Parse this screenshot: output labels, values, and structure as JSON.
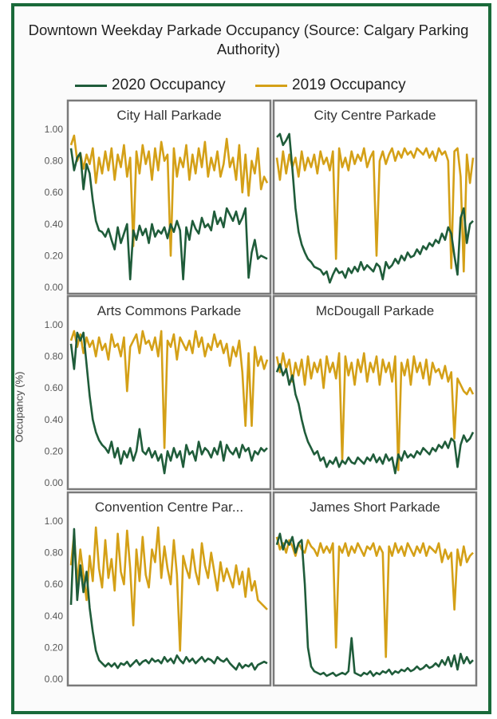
{
  "title": "Downtown Weekday Parkade Occupancy (Source: Calgary Parking Authority)",
  "colors": {
    "frame": "#1a6a3a",
    "series_2020": "#1f5c3a",
    "series_2019": "#d4a017",
    "panel_border": "#7a7a7a"
  },
  "chart_data": {
    "type": "line",
    "ylabel": "Occupancy (%)",
    "ylim": [
      0,
      1
    ],
    "yticks": [
      "0.00",
      "0.20",
      "0.40",
      "0.60",
      "0.80",
      "1.00"
    ],
    "series_names": [
      "2020 Occupancy",
      "2019 Occupancy"
    ],
    "legend": "top-center",
    "panels": [
      {
        "name": "City Hall Parkade",
        "series_2020": [
          0.88,
          0.74,
          0.82,
          0.85,
          0.62,
          0.78,
          0.72,
          0.55,
          0.42,
          0.36,
          0.35,
          0.32,
          0.37,
          0.3,
          0.24,
          0.38,
          0.28,
          0.34,
          0.4,
          0.05,
          0.36,
          0.3,
          0.39,
          0.33,
          0.37,
          0.28,
          0.4,
          0.32,
          0.36,
          0.34,
          0.38,
          0.31,
          0.4,
          0.35,
          0.42,
          0.36,
          0.05,
          0.38,
          0.3,
          0.42,
          0.37,
          0.34,
          0.44,
          0.38,
          0.4,
          0.36,
          0.48,
          0.4,
          0.44,
          0.38,
          0.5,
          0.46,
          0.42,
          0.48,
          0.4,
          0.44,
          0.5,
          0.06,
          0.22,
          0.3,
          0.18,
          0.2,
          0.19,
          0.18
        ],
        "series_2019": [
          0.9,
          0.96,
          0.8,
          0.85,
          0.75,
          0.84,
          0.78,
          0.88,
          0.66,
          0.82,
          0.72,
          0.86,
          0.74,
          0.88,
          0.68,
          0.84,
          0.76,
          0.9,
          0.7,
          0.82,
          0.26,
          0.86,
          0.72,
          0.9,
          0.78,
          0.86,
          0.68,
          0.88,
          0.74,
          0.92,
          0.8,
          0.84,
          0.2,
          0.88,
          0.7,
          0.82,
          0.76,
          0.9,
          0.68,
          0.84,
          0.72,
          0.88,
          0.76,
          0.92,
          0.7,
          0.82,
          0.74,
          0.86,
          0.7,
          0.78,
          0.94,
          0.76,
          0.82,
          0.68,
          0.9,
          0.6,
          0.84,
          0.58,
          0.8,
          0.72,
          0.88,
          0.62,
          0.7,
          0.66
        ]
      },
      {
        "name": "City Centre Parkade",
        "series_2020": [
          0.95,
          0.97,
          0.9,
          0.93,
          0.97,
          0.75,
          0.5,
          0.35,
          0.27,
          0.22,
          0.18,
          0.16,
          0.13,
          0.12,
          0.11,
          0.08,
          0.1,
          0.03,
          0.08,
          0.12,
          0.09,
          0.1,
          0.06,
          0.12,
          0.09,
          0.13,
          0.1,
          0.16,
          0.11,
          0.14,
          0.12,
          0.1,
          0.15,
          0.13,
          0.05,
          0.16,
          0.12,
          0.14,
          0.18,
          0.15,
          0.2,
          0.17,
          0.22,
          0.19,
          0.2,
          0.24,
          0.21,
          0.26,
          0.24,
          0.28,
          0.26,
          0.3,
          0.28,
          0.34,
          0.3,
          0.38,
          0.34,
          0.2,
          0.08,
          0.44,
          0.5,
          0.28,
          0.4,
          0.42
        ],
        "series_2019": [
          0.82,
          0.68,
          0.86,
          0.72,
          0.84,
          0.76,
          0.82,
          0.7,
          0.86,
          0.74,
          0.82,
          0.76,
          0.84,
          0.72,
          0.86,
          0.78,
          0.82,
          0.74,
          0.86,
          0.18,
          0.88,
          0.76,
          0.82,
          0.74,
          0.86,
          0.78,
          0.84,
          0.8,
          0.88,
          0.76,
          0.82,
          0.86,
          0.2,
          0.8,
          0.86,
          0.78,
          0.84,
          0.88,
          0.8,
          0.86,
          0.82,
          0.88,
          0.84,
          0.86,
          0.82,
          0.88,
          0.86,
          0.84,
          0.88,
          0.82,
          0.86,
          0.8,
          0.88,
          0.84,
          0.86,
          0.8,
          0.12,
          0.86,
          0.88,
          0.7,
          0.1,
          0.84,
          0.66,
          0.82
        ]
      },
      {
        "name": "Arts Commons Parkade",
        "series_2020": [
          0.88,
          0.72,
          0.95,
          0.9,
          0.95,
          0.75,
          0.55,
          0.4,
          0.32,
          0.27,
          0.24,
          0.22,
          0.19,
          0.26,
          0.16,
          0.22,
          0.12,
          0.2,
          0.16,
          0.22,
          0.14,
          0.2,
          0.34,
          0.2,
          0.18,
          0.22,
          0.16,
          0.2,
          0.14,
          0.18,
          0.06,
          0.2,
          0.14,
          0.22,
          0.16,
          0.2,
          0.1,
          0.24,
          0.18,
          0.2,
          0.14,
          0.26,
          0.18,
          0.22,
          0.2,
          0.16,
          0.22,
          0.18,
          0.26,
          0.14,
          0.24,
          0.2,
          0.18,
          0.22,
          0.16,
          0.24,
          0.2,
          0.22,
          0.14,
          0.2,
          0.18,
          0.22,
          0.2,
          0.22
        ],
        "series_2019": [
          0.9,
          0.96,
          0.86,
          0.94,
          0.82,
          0.92,
          0.86,
          0.9,
          0.8,
          0.92,
          0.84,
          0.88,
          0.78,
          0.94,
          0.86,
          0.88,
          0.8,
          0.92,
          0.58,
          0.86,
          0.9,
          0.94,
          0.82,
          0.96,
          0.88,
          0.9,
          0.84,
          0.92,
          0.8,
          0.96,
          0.22,
          0.9,
          0.86,
          0.94,
          0.78,
          0.92,
          0.88,
          0.84,
          0.9,
          0.82,
          0.96,
          0.86,
          0.92,
          0.8,
          0.88,
          0.84,
          0.94,
          0.86,
          0.9,
          0.82,
          0.88,
          0.74,
          0.86,
          0.8,
          0.9,
          0.7,
          0.36,
          0.82,
          0.36,
          0.86,
          0.74,
          0.8,
          0.72,
          0.78
        ]
      },
      {
        "name": "McDougall Parkade",
        "series_2020": [
          0.7,
          0.75,
          0.68,
          0.72,
          0.62,
          0.68,
          0.56,
          0.5,
          0.4,
          0.32,
          0.26,
          0.22,
          0.18,
          0.2,
          0.14,
          0.16,
          0.1,
          0.14,
          0.12,
          0.16,
          0.1,
          0.14,
          0.12,
          0.16,
          0.13,
          0.12,
          0.16,
          0.14,
          0.12,
          0.16,
          0.14,
          0.18,
          0.13,
          0.16,
          0.12,
          0.18,
          0.14,
          0.16,
          0.06,
          0.18,
          0.14,
          0.2,
          0.16,
          0.18,
          0.16,
          0.2,
          0.18,
          0.22,
          0.2,
          0.18,
          0.22,
          0.2,
          0.24,
          0.22,
          0.26,
          0.22,
          0.28,
          0.26,
          0.1,
          0.24,
          0.3,
          0.26,
          0.28,
          0.32
        ],
        "series_2019": [
          0.8,
          0.7,
          0.82,
          0.72,
          0.78,
          0.64,
          0.76,
          0.68,
          0.78,
          0.62,
          0.8,
          0.66,
          0.76,
          0.7,
          0.78,
          0.6,
          0.8,
          0.7,
          0.76,
          0.66,
          0.82,
          0.14,
          0.8,
          0.68,
          0.76,
          0.62,
          0.78,
          0.7,
          0.82,
          0.64,
          0.76,
          0.7,
          0.8,
          0.62,
          0.78,
          0.7,
          0.76,
          0.64,
          0.8,
          0.08,
          0.76,
          0.68,
          0.78,
          0.62,
          0.8,
          0.7,
          0.76,
          0.66,
          0.78,
          0.62,
          0.76,
          0.7,
          0.72,
          0.66,
          0.74,
          0.64,
          0.7,
          0.28,
          0.66,
          0.62,
          0.58,
          0.56,
          0.6,
          0.56
        ]
      },
      {
        "name": "Convention Centre Par...",
        "series_2020": [
          0.47,
          0.95,
          0.5,
          0.72,
          0.55,
          0.68,
          0.45,
          0.3,
          0.18,
          0.12,
          0.1,
          0.08,
          0.1,
          0.08,
          0.1,
          0.07,
          0.1,
          0.09,
          0.11,
          0.08,
          0.1,
          0.12,
          0.09,
          0.11,
          0.12,
          0.1,
          0.13,
          0.11,
          0.12,
          0.1,
          0.14,
          0.11,
          0.13,
          0.1,
          0.15,
          0.12,
          0.1,
          0.14,
          0.11,
          0.13,
          0.1,
          0.12,
          0.14,
          0.11,
          0.13,
          0.12,
          0.1,
          0.14,
          0.12,
          0.11,
          0.13,
          0.1,
          0.08,
          0.06,
          0.1,
          0.07,
          0.09,
          0.08,
          0.1,
          0.06,
          0.09,
          0.1,
          0.11,
          0.1
        ],
        "series_2019": [
          0.72,
          0.92,
          0.6,
          0.82,
          0.66,
          0.5,
          0.78,
          0.62,
          0.96,
          0.7,
          0.58,
          0.88,
          0.64,
          0.76,
          0.56,
          0.92,
          0.68,
          0.6,
          0.94,
          0.7,
          0.34,
          0.82,
          0.62,
          0.9,
          0.66,
          0.58,
          0.82,
          0.74,
          0.96,
          0.64,
          0.84,
          0.7,
          0.6,
          0.88,
          0.66,
          0.18,
          0.78,
          0.7,
          0.64,
          0.82,
          0.68,
          0.6,
          0.86,
          0.72,
          0.64,
          0.8,
          0.68,
          0.56,
          0.74,
          0.62,
          0.7,
          0.64,
          0.58,
          0.72,
          0.6,
          0.68,
          0.52,
          0.7,
          0.56,
          0.62,
          0.5,
          0.48,
          0.46,
          0.44
        ]
      },
      {
        "name": "James Short Parkade",
        "series_2020": [
          0.85,
          0.92,
          0.82,
          0.88,
          0.85,
          0.9,
          0.8,
          0.86,
          0.88,
          0.6,
          0.2,
          0.08,
          0.05,
          0.04,
          0.03,
          0.04,
          0.02,
          0.03,
          0.04,
          0.02,
          0.03,
          0.04,
          0.03,
          0.05,
          0.26,
          0.04,
          0.03,
          0.02,
          0.04,
          0.03,
          0.05,
          0.02,
          0.04,
          0.03,
          0.05,
          0.04,
          0.06,
          0.03,
          0.05,
          0.04,
          0.06,
          0.05,
          0.07,
          0.05,
          0.06,
          0.08,
          0.06,
          0.07,
          0.09,
          0.07,
          0.08,
          0.1,
          0.08,
          0.12,
          0.09,
          0.14,
          0.08,
          0.15,
          0.06,
          0.16,
          0.1,
          0.14,
          0.1,
          0.12
        ],
        "series_2019": [
          0.9,
          0.82,
          0.86,
          0.8,
          0.88,
          0.84,
          0.78,
          0.86,
          0.82,
          0.8,
          0.88,
          0.84,
          0.82,
          0.78,
          0.86,
          0.8,
          0.84,
          0.8,
          0.86,
          0.2,
          0.84,
          0.8,
          0.86,
          0.78,
          0.84,
          0.8,
          0.86,
          0.82,
          0.78,
          0.84,
          0.82,
          0.86,
          0.78,
          0.84,
          0.8,
          0.14,
          0.84,
          0.78,
          0.86,
          0.8,
          0.84,
          0.78,
          0.86,
          0.82,
          0.78,
          0.84,
          0.8,
          0.86,
          0.78,
          0.84,
          0.82,
          0.8,
          0.86,
          0.74,
          0.82,
          0.76,
          0.8,
          0.44,
          0.82,
          0.72,
          0.84,
          0.74,
          0.78,
          0.8
        ]
      }
    ]
  }
}
